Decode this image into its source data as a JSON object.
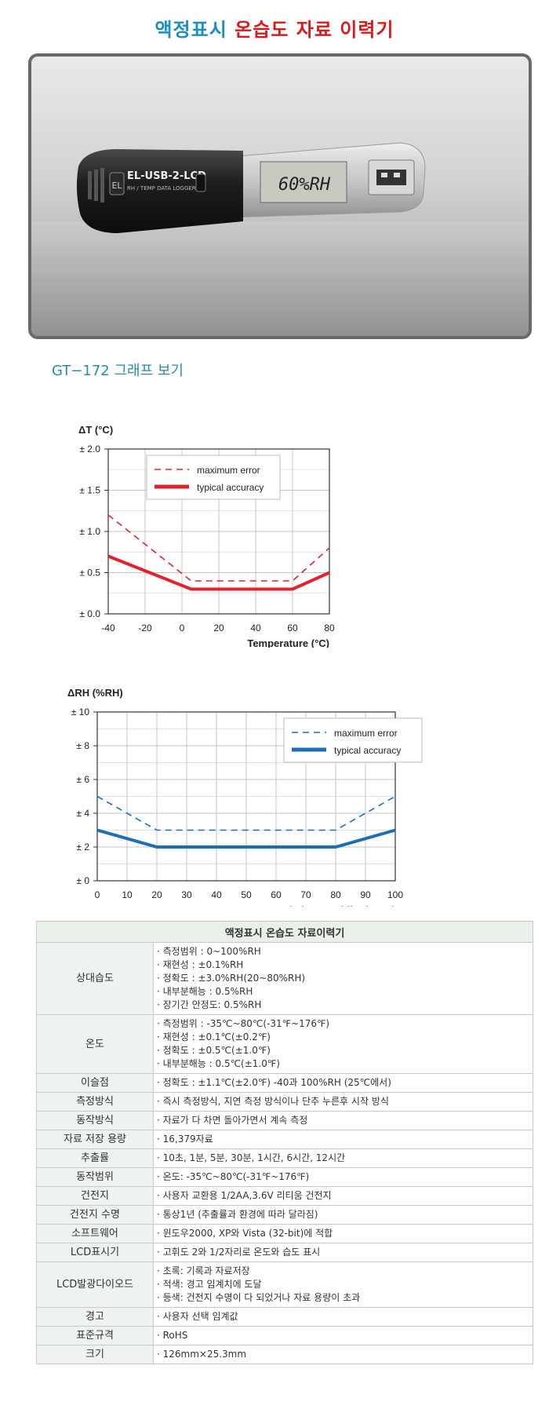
{
  "header": {
    "title_part1": "액정표시",
    "title_part2": "온습도 자료 이력기"
  },
  "product_image": {
    "device_label": "EL-USB-2-LCD",
    "device_sub": "RH / TEMP DATA LOGGER",
    "lcd_text": "60%RH",
    "logo": "EL"
  },
  "section_title": "GT−172 그래프 보기",
  "chart_data": [
    {
      "type": "line",
      "ylabel": "ΔT (°C)",
      "xlabel": "Temperature (°C)",
      "xlim": [
        -40,
        80
      ],
      "ylim": [
        0,
        2
      ],
      "x_ticks": [
        -40,
        -20,
        0,
        20,
        40,
        60,
        80
      ],
      "y_ticks": [
        0,
        0.5,
        1,
        1.5,
        2
      ],
      "y_tick_labels": [
        "± 0.0",
        "± 0.5",
        "± 1.0",
        "± 1.5",
        "± 2.0"
      ],
      "grid": true,
      "legend": "top-right",
      "color": "#e3232c",
      "series": [
        {
          "name": "maximum error",
          "style": "dashed",
          "x": [
            -40,
            5,
            60,
            80
          ],
          "y": [
            1.2,
            0.4,
            0.4,
            0.8
          ]
        },
        {
          "name": "typical accuracy",
          "style": "solid",
          "x": [
            -40,
            5,
            60,
            80
          ],
          "y": [
            0.7,
            0.3,
            0.3,
            0.5
          ]
        }
      ]
    },
    {
      "type": "line",
      "ylabel": "ΔRH (%RH)",
      "xlabel": "Relative Humidity (%RH)",
      "xlim": [
        0,
        100
      ],
      "ylim": [
        0,
        10
      ],
      "x_ticks": [
        0,
        10,
        20,
        30,
        40,
        50,
        60,
        70,
        80,
        90,
        100
      ],
      "y_ticks": [
        0,
        2,
        4,
        6,
        8,
        10
      ],
      "y_tick_labels": [
        "± 0",
        "± 2",
        "± 4",
        "± 6",
        "± 8",
        "± 10"
      ],
      "grid": true,
      "legend": "top-right",
      "color": "#1a6fb5",
      "series": [
        {
          "name": "maximum error",
          "style": "dashed",
          "x": [
            0,
            20,
            80,
            100
          ],
          "y": [
            5,
            3,
            3,
            5
          ]
        },
        {
          "name": "typical accuracy",
          "style": "solid",
          "x": [
            0,
            20,
            80,
            100
          ],
          "y": [
            3,
            2,
            2,
            3
          ]
        }
      ]
    }
  ],
  "spec_table": {
    "title": "액정표시 온습도 자료이력기",
    "rows": [
      {
        "label": "상대습도",
        "lines": [
          "· 측정범위 : 0~100%RH",
          "· 재현성 : ±0.1%RH",
          "· 정확도 : ±3.0%RH(20~80%RH)",
          "· 내부분해능 : 0.5%RH",
          "· 장기간 안정도: 0.5%RH"
        ]
      },
      {
        "label": "온도",
        "lines": [
          "· 측정범위 : -35℃~80℃(-31℉~176℉)",
          "· 재현성 : ±0.1℃(±0.2℉)",
          "· 정확도 : ±0.5℃(±1.0℉)",
          "· 내부분해능 : 0.5℃(±1.0℉)"
        ]
      },
      {
        "label": "이슬점",
        "lines": [
          "· 정확도 : ±1.1℃(±2.0℉) -40과 100%RH (25℃에서)"
        ]
      },
      {
        "label": "측정방식",
        "lines": [
          "· 즉시 측정방식, 지연 측정 방식이나 단추 누른후 시작 방식"
        ]
      },
      {
        "label": "동작방식",
        "lines": [
          "· 자료가 다 차면 돌아가면서 계속 측정"
        ]
      },
      {
        "label": "자료 저장 용량",
        "lines": [
          "· 16,379자료"
        ]
      },
      {
        "label": "추출률",
        "lines": [
          "· 10초, 1분, 5분, 30분, 1시간, 6시간, 12시간"
        ]
      },
      {
        "label": "동작범위",
        "lines": [
          "· 온도: -35℃~80℃(-31℉~176℉)"
        ]
      },
      {
        "label": "건전지",
        "lines": [
          "· 사용자 교환용 1/2AA,3.6V 리티움 건전지"
        ]
      },
      {
        "label": "건전지 수명",
        "lines": [
          "· 통상1년 (추출률과 환경에 따라 달라짐)"
        ]
      },
      {
        "label": "소프트웨어",
        "lines": [
          "· 윈도우2000, XP와 Vista (32-bit)에 적합"
        ]
      },
      {
        "label": "LCD표시기",
        "lines": [
          "· 고휘도 2와 1/2자리로 온도와 습도 표시"
        ]
      },
      {
        "label": "LCD발광다이오드",
        "lines": [
          "· 초록: 기록과 자료저장",
          "· 적색: 경고 임계치에 도달",
          "· 등색: 건전지 수명이 다 되었거나 자료 용량이 초과"
        ]
      },
      {
        "label": "경고",
        "lines": [
          "· 사용자 선택 임계값"
        ]
      },
      {
        "label": "표준규격",
        "lines": [
          "· RoHS"
        ]
      },
      {
        "label": "크기",
        "lines": [
          "· 126mm×25.3mm"
        ]
      }
    ]
  }
}
